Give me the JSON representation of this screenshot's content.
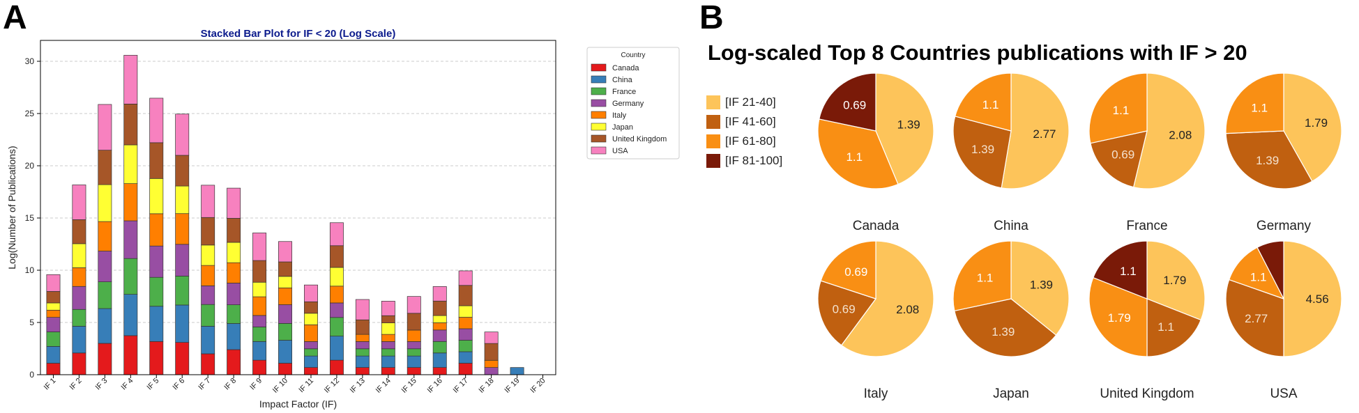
{
  "panels": {
    "a_label": "A",
    "b_label": "B"
  },
  "chart_data": [
    {
      "type": "bar",
      "stacked": true,
      "title": "Stacked Bar Plot for IF < 20 (Log Scale)",
      "xlabel": "Impact Factor (IF)",
      "ylabel": "Log(Number of Publications)",
      "ylim": [
        0,
        32
      ],
      "yticks": [
        0,
        5,
        10,
        15,
        20,
        25,
        30
      ],
      "grid": "horizontal dashed",
      "legend_title": "Country",
      "legend_position": "right",
      "categories": [
        "IF 1",
        "IF 2",
        "IF 3",
        "IF 4",
        "IF 5",
        "IF 6",
        "IF 7",
        "IF 8",
        "IF 9",
        "IF 10",
        "IF 11",
        "IF 12",
        "IF 13",
        "IF 14",
        "IF 15",
        "IF 16",
        "IF 17",
        "IF 18",
        "IF 19",
        "IF 20"
      ],
      "series": [
        {
          "name": "Canada",
          "color": "#e41a1c",
          "values": [
            1.1,
            2.08,
            3.0,
            3.74,
            3.18,
            3.09,
            2.0,
            2.4,
            1.39,
            1.1,
            0.69,
            1.39,
            0.69,
            0.69,
            0.69,
            0.69,
            1.1,
            0.0,
            0.0,
            0.0
          ]
        },
        {
          "name": "China",
          "color": "#377eb8",
          "values": [
            1.61,
            2.56,
            3.33,
            3.95,
            3.37,
            3.58,
            2.64,
            2.5,
            1.79,
            2.2,
            1.1,
            2.3,
            1.1,
            1.1,
            1.1,
            1.39,
            1.1,
            0.0,
            0.69,
            0.0
          ]
        },
        {
          "name": "France",
          "color": "#4daf4a",
          "values": [
            1.39,
            1.61,
            2.56,
            3.43,
            2.77,
            2.77,
            2.08,
            1.79,
            1.39,
            1.61,
            0.69,
            1.79,
            0.69,
            0.69,
            0.69,
            1.1,
            1.1,
            0.0,
            0.0,
            0.0
          ]
        },
        {
          "name": "Germany",
          "color": "#984ea3",
          "values": [
            1.39,
            2.2,
            2.94,
            3.61,
            3.0,
            3.04,
            1.79,
            2.08,
            1.1,
            1.79,
            0.69,
            1.39,
            0.69,
            0.69,
            0.69,
            1.1,
            1.1,
            0.69,
            0.0,
            0.0
          ]
        },
        {
          "name": "Italy",
          "color": "#ff7f00",
          "values": [
            0.69,
            1.79,
            2.83,
            3.56,
            3.09,
            2.94,
            1.95,
            1.95,
            1.79,
            1.61,
            1.61,
            1.61,
            0.69,
            0.69,
            1.1,
            0.69,
            1.1,
            0.69,
            0.0,
            0.0
          ]
        },
        {
          "name": "Japan",
          "color": "#ffff33",
          "values": [
            0.69,
            2.3,
            3.53,
            3.71,
            3.37,
            2.64,
            1.95,
            1.95,
            1.39,
            1.1,
            1.1,
            1.79,
            0.0,
            1.1,
            0.0,
            0.69,
            1.1,
            0.0,
            0.0,
            0.0
          ]
        },
        {
          "name": "United Kingdom",
          "color": "#a65628",
          "values": [
            1.1,
            2.3,
            3.3,
            3.91,
            3.43,
            2.94,
            2.64,
            2.3,
            2.08,
            1.39,
            1.1,
            2.08,
            1.39,
            0.69,
            1.61,
            1.39,
            1.95,
            1.61,
            0.0,
            0.0
          ]
        },
        {
          "name": "USA",
          "color": "#f781bf",
          "values": [
            1.61,
            3.33,
            4.38,
            4.67,
            4.26,
            3.95,
            3.09,
            2.89,
            2.64,
            1.95,
            1.61,
            2.2,
            1.95,
            1.39,
            1.61,
            1.39,
            1.39,
            1.1,
            0.0,
            0.0
          ]
        }
      ]
    },
    {
      "type": "pie",
      "title": "Log-scaled Top 8 Countries publications with IF > 20",
      "legend": [
        {
          "label": "[IF 21-40]",
          "color": "#fdc45a"
        },
        {
          "label": "[IF 41-60]",
          "color": "#c06010"
        },
        {
          "label": "[IF 61-80]",
          "color": "#f98f14"
        },
        {
          "label": "[IF 81-100]",
          "color": "#7a1a08"
        }
      ],
      "pies": [
        {
          "country": "Canada",
          "values": [
            1.39,
            null,
            1.1,
            0.69
          ],
          "labels": [
            "1.39",
            "",
            "1.1",
            "0.69"
          ]
        },
        {
          "country": "China",
          "values": [
            2.77,
            1.39,
            1.1,
            null
          ],
          "labels": [
            "2.77",
            "1.39",
            "1.1",
            ""
          ]
        },
        {
          "country": "France",
          "values": [
            2.08,
            0.69,
            1.1,
            null
          ],
          "labels": [
            "2.08",
            "0.69",
            "1.1",
            ""
          ]
        },
        {
          "country": "Germany",
          "values": [
            1.79,
            1.39,
            1.1,
            null
          ],
          "labels": [
            "1.79",
            "1.39",
            "1.1",
            ""
          ]
        },
        {
          "country": "Italy",
          "values": [
            2.08,
            0.69,
            0.69,
            null
          ],
          "labels": [
            "2.08",
            "0.69",
            "0.69",
            ""
          ]
        },
        {
          "country": "Japan",
          "values": [
            1.39,
            1.39,
            1.1,
            null
          ],
          "labels": [
            "1.39",
            "1.39",
            "1.1",
            ""
          ]
        },
        {
          "country": "United Kingdom",
          "values": [
            1.79,
            1.1,
            1.79,
            1.1
          ],
          "labels": [
            "1.79",
            "1.1",
            "1.79",
            "1.1"
          ]
        },
        {
          "country": "USA",
          "values": [
            4.56,
            2.77,
            1.1,
            0.69
          ],
          "labels": [
            "4.56",
            "2.77",
            "1.1",
            ""
          ]
        }
      ]
    }
  ]
}
